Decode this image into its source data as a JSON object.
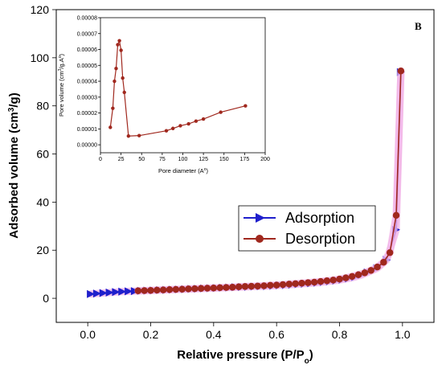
{
  "panel_label": "B",
  "chart_data": [
    {
      "type": "line",
      "xlabel": "Relative pressure (P/P",
      "xlabel_sub": "o",
      "xlabel_end": ")",
      "ylabel": "Adsorbed volume (cm",
      "ylabel_sup": "3",
      "ylabel_end": "/g)",
      "xlim": [
        -0.1,
        1.1
      ],
      "ylim": [
        -10,
        120
      ],
      "xticks": [
        0.0,
        0.2,
        0.4,
        0.6,
        0.8,
        1.0
      ],
      "xtick_labels": [
        "0.0",
        "0.2",
        "0.4",
        "0.6",
        "0.8",
        "1.0"
      ],
      "yticks": [
        0,
        20,
        40,
        60,
        80,
        100,
        120
      ],
      "ytick_labels": [
        "0",
        "20",
        "40",
        "60",
        "80",
        "100",
        "120"
      ],
      "legend_position": "center-right",
      "series": [
        {
          "name": "Adsorption",
          "color": "#1f1fcc",
          "marker": "triangle-right",
          "x": [
            0.01,
            0.03,
            0.05,
            0.07,
            0.09,
            0.11,
            0.13,
            0.15,
            0.17,
            0.19,
            0.21,
            0.23,
            0.25,
            0.27,
            0.29,
            0.31,
            0.33,
            0.35,
            0.37,
            0.39,
            0.41,
            0.43,
            0.45,
            0.47,
            0.49,
            0.51,
            0.53,
            0.55,
            0.57,
            0.59,
            0.61,
            0.63,
            0.65,
            0.67,
            0.69,
            0.71,
            0.73,
            0.75,
            0.77,
            0.79,
            0.81,
            0.83,
            0.85,
            0.87,
            0.89,
            0.92,
            0.95,
            0.98,
            0.995
          ],
          "y": [
            1.8,
            2.0,
            2.2,
            2.4,
            2.6,
            2.8,
            2.9,
            3.0,
            3.1,
            3.2,
            3.3,
            3.4,
            3.5,
            3.6,
            3.7,
            3.8,
            3.9,
            4.0,
            4.1,
            4.2,
            4.3,
            4.4,
            4.5,
            4.6,
            4.7,
            4.8,
            4.9,
            5.0,
            5.1,
            5.2,
            5.4,
            5.5,
            5.7,
            5.9,
            6.1,
            6.3,
            6.5,
            6.8,
            7.1,
            7.4,
            7.8,
            8.3,
            8.9,
            9.7,
            10.8,
            12.5,
            16.0,
            28.5,
            94.0
          ]
        },
        {
          "name": "Desorption",
          "color": "#a0281e",
          "marker": "circle",
          "x": [
            0.995,
            0.98,
            0.96,
            0.94,
            0.92,
            0.9,
            0.88,
            0.86,
            0.84,
            0.82,
            0.8,
            0.78,
            0.76,
            0.74,
            0.72,
            0.7,
            0.68,
            0.66,
            0.64,
            0.62,
            0.6,
            0.58,
            0.56,
            0.54,
            0.52,
            0.5,
            0.48,
            0.46,
            0.44,
            0.42,
            0.4,
            0.38,
            0.36,
            0.34,
            0.32,
            0.3,
            0.28,
            0.26,
            0.24,
            0.22,
            0.2,
            0.18,
            0.16
          ],
          "y": [
            94.5,
            34.5,
            19.0,
            15.0,
            13.0,
            11.6,
            10.6,
            9.8,
            9.1,
            8.5,
            8.0,
            7.6,
            7.3,
            7.0,
            6.7,
            6.5,
            6.3,
            6.1,
            5.9,
            5.7,
            5.5,
            5.4,
            5.2,
            5.1,
            5.0,
            4.9,
            4.8,
            4.6,
            4.5,
            4.4,
            4.3,
            4.2,
            4.1,
            4.0,
            3.9,
            3.8,
            3.7,
            3.6,
            3.5,
            3.4,
            3.3,
            3.2,
            3.1
          ]
        }
      ]
    },
    {
      "type": "line",
      "xlabel": "Pore diameter (A",
      "xlabel_sup": "o",
      "xlabel_end": ")",
      "ylabel": "Pore volume (cm",
      "ylabel_sup": "3",
      "ylabel_mid": "/g.A",
      "ylabel_sup2": "o",
      "ylabel_end": ")",
      "xlim": [
        0,
        200
      ],
      "ylim": [
        -5e-06,
        8e-05
      ],
      "xticks": [
        0,
        25,
        50,
        75,
        100,
        125,
        150,
        175,
        200
      ],
      "xtick_labels": [
        "0",
        "25",
        "50",
        "75",
        "100",
        "125",
        "150",
        "175",
        "200"
      ],
      "yticks": [
        0,
        1e-05,
        2e-05,
        3e-05,
        4e-05,
        5e-05,
        6e-05,
        7e-05,
        8e-05
      ],
      "ytick_labels": [
        "0.00000",
        "0.00001",
        "0.00002",
        "0.00003",
        "0.00004",
        "0.00005",
        "0.00006",
        "0.00007",
        "0.00008"
      ],
      "series": [
        {
          "color": "#a0281e",
          "marker": "circle",
          "x": [
            12,
            15,
            17,
            19,
            21,
            23,
            25,
            27,
            29,
            34,
            47,
            80,
            88,
            97,
            107,
            116,
            125,
            146,
            176
          ],
          "y": [
            1.1e-05,
            2.3e-05,
            4e-05,
            4.8e-05,
            6.3e-05,
            6.55e-05,
            5.95e-05,
            4.2e-05,
            3.3e-05,
            5.5e-06,
            5.8e-06,
            8.8e-06,
            1.03e-05,
            1.2e-05,
            1.32e-05,
            1.49e-05,
            1.62e-05,
            2.05e-05,
            2.45e-05
          ]
        }
      ]
    }
  ]
}
